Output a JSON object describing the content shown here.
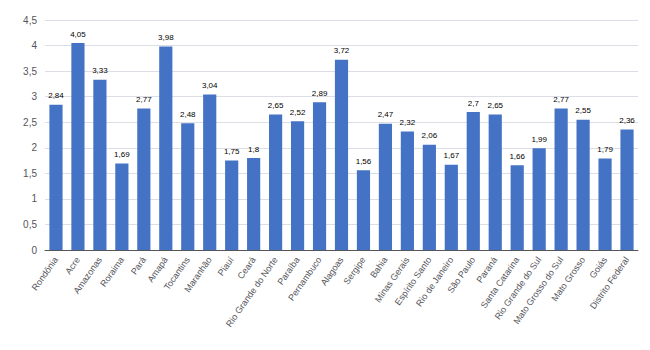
{
  "chart_data": {
    "type": "bar",
    "categories": [
      "Rondônia",
      "Acre",
      "Amazonas",
      "Roraima",
      "Pará",
      "Amapá",
      "Tocantins",
      "Maranhão",
      "Piauí",
      "Ceará",
      "Rio Grande do Norte",
      "Paraíba",
      "Pernambuco",
      "Alagoas",
      "Sergipe",
      "Bahia",
      "Minas Gerais",
      "Espírito Santo",
      "Rio de Janeiro",
      "São Paulo",
      "Paraná",
      "Santa Catarina",
      "Rio Grande do Sul",
      "Mato Grosso do Sul",
      "Mato Grosso",
      "Goiás",
      "Distrito Federal"
    ],
    "values": [
      2.84,
      4.05,
      3.33,
      1.69,
      2.77,
      3.98,
      2.48,
      3.04,
      1.75,
      1.8,
      2.65,
      2.52,
      2.89,
      3.72,
      1.56,
      2.47,
      2.32,
      2.06,
      1.67,
      2.7,
      2.65,
      1.66,
      1.99,
      2.77,
      2.55,
      1.79,
      2.36
    ],
    "value_labels": [
      "2,84",
      "4,05",
      "3,33",
      "1,69",
      "2,77",
      "3,98",
      "2,48",
      "3,04",
      "1,75",
      "1,8",
      "2,65",
      "2,52",
      "2,89",
      "3,72",
      "1,56",
      "2,47",
      "2,32",
      "2,06",
      "1,67",
      "2,7",
      "2,65",
      "1,66",
      "1,99",
      "2,77",
      "2,55",
      "1,79",
      "2,36"
    ],
    "color": "#4472C4",
    "ylim": [
      0,
      4.5
    ],
    "yticks": [
      0,
      {
        "value": 0.5,
        "label": "0,5"
      },
      1,
      {
        "value": 1.5,
        "label": "1,5"
      },
      2,
      {
        "value": 2.5,
        "label": "2,5"
      },
      3,
      {
        "value": 3.5,
        "label": "3,5"
      },
      4,
      {
        "value": 4.5,
        "label": "4,5"
      }
    ],
    "grid": true,
    "data_labels": true
  }
}
